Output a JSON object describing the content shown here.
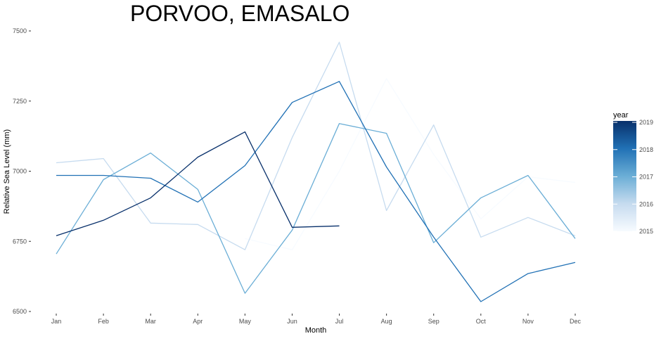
{
  "chart_data": {
    "type": "line",
    "title": "PORVOO, EMASALO",
    "xlabel": "Month",
    "ylabel": "Relative Sea Level (mm)",
    "categories": [
      "Jan",
      "Feb",
      "Mar",
      "Apr",
      "May",
      "Jun",
      "Jul",
      "Aug",
      "Sep",
      "Oct",
      "Nov",
      "Dec"
    ],
    "ylim": [
      6500,
      7500
    ],
    "yticks": [
      6500,
      6750,
      7000,
      7250,
      7500
    ],
    "grid": false,
    "legend": {
      "title": "year",
      "position": "right",
      "type": "colorbar",
      "range": [
        2015,
        2019
      ],
      "ticks": [
        2015,
        2016,
        2017,
        2018,
        2019
      ],
      "color_low": "#f7fbff",
      "color_high": "#08306b"
    },
    "series": [
      {
        "year": 2015,
        "values": [
          null,
          null,
          null,
          null,
          6760,
          6720,
          7000,
          7330,
          7060,
          6830,
          6980,
          6960
        ]
      },
      {
        "year": 2016,
        "values": [
          7030,
          7045,
          6815,
          6810,
          6720,
          7120,
          7460,
          6860,
          7165,
          6765,
          6835,
          6770
        ]
      },
      {
        "year": 2017,
        "values": [
          6705,
          6970,
          7065,
          6935,
          6565,
          6790,
          7170,
          7135,
          6745,
          6905,
          6985,
          6760
        ]
      },
      {
        "year": 2018,
        "values": [
          6985,
          6985,
          6975,
          6890,
          7020,
          7245,
          7320,
          7015,
          6765,
          6535,
          6635,
          6675
        ]
      },
      {
        "year": 2019,
        "values": [
          6770,
          6825,
          6905,
          7050,
          7140,
          6800,
          6805,
          null,
          null,
          null,
          null,
          null
        ]
      }
    ]
  }
}
